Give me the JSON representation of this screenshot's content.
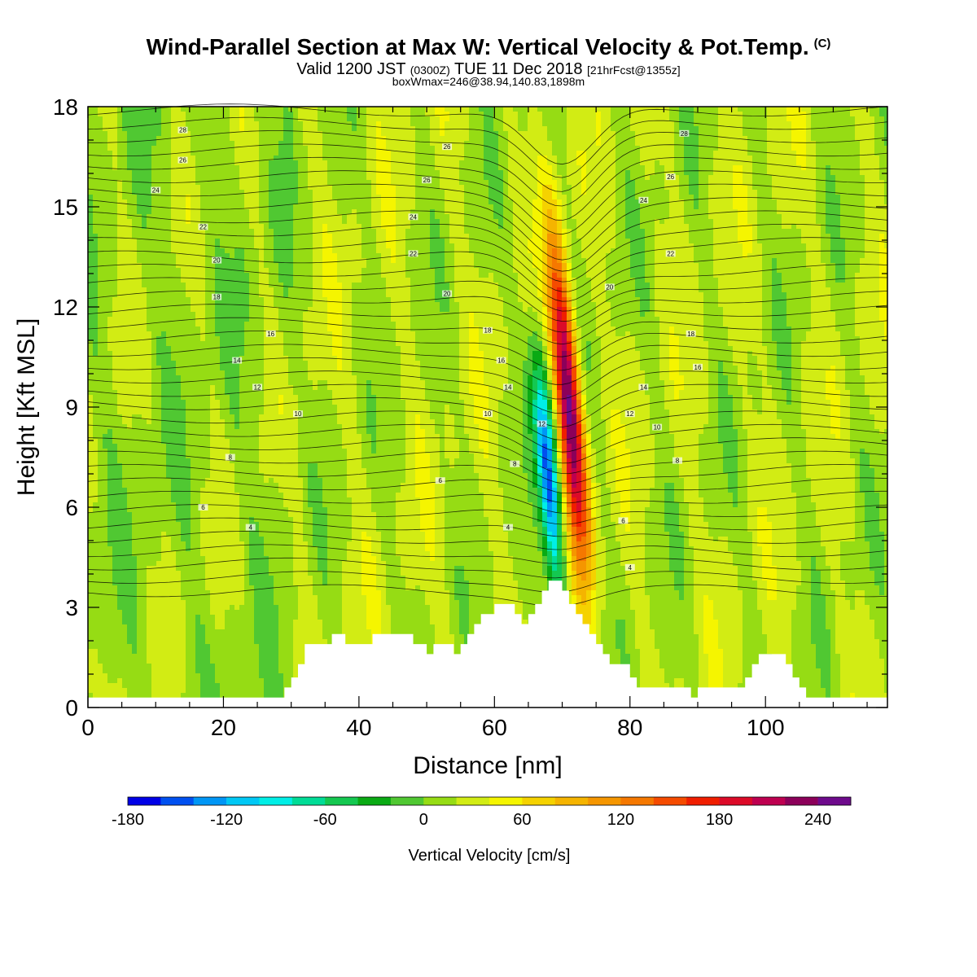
{
  "titles": {
    "main": "Wind-Parallel Section at Max W: Vertical Velocity & Pot.Temp.",
    "copyright": "(C)",
    "valid_prefix": "Valid 1200 JST",
    "valid_zulu": "(0300Z)",
    "valid_date": "TUE 11 Dec 2018",
    "forecast": "[21hrFcst@1355z]",
    "boxmax": "boxWmax=246@38.94,140.83,1898m"
  },
  "chart_data": {
    "type": "heatmap",
    "title": "Wind-Parallel Section at Max W: Vertical Velocity & Pot.Temp.",
    "xlabel": "Distance [nm]",
    "ylabel": "Height [Kft MSL]",
    "xlim": [
      0,
      118
    ],
    "ylim": [
      0,
      18
    ],
    "xticks": [
      0,
      20,
      40,
      60,
      80,
      100
    ],
    "yticks": [
      0,
      3,
      6,
      9,
      12,
      15,
      18
    ],
    "grid": false,
    "colorbar": {
      "label": "Vertical Velocity [cm/s]",
      "min": -180,
      "max": 260,
      "step": 20,
      "tick_values": [
        -180,
        -120,
        -60,
        0,
        60,
        120,
        180,
        240
      ],
      "colors": [
        "#0000e6",
        "#0050f0",
        "#0096f5",
        "#00c8f5",
        "#00eee6",
        "#00dc96",
        "#14c850",
        "#0aaa14",
        "#50c832",
        "#96dc14",
        "#d2ec14",
        "#f5f500",
        "#f5d200",
        "#f5b400",
        "#f59600",
        "#f57800",
        "#f54b00",
        "#f01e00",
        "#dc0a28",
        "#be0050",
        "#8c005a",
        "#6e0a8c"
      ]
    },
    "vertical_velocity_cm_s": {
      "background_range": [
        -20,
        20
      ],
      "updraft": {
        "peak": 246,
        "at": {
          "x": 71,
          "height_kft": 9
        },
        "units": "cm/s"
      },
      "downdraft": {
        "peak": -180,
        "at": {
          "x": 68,
          "height_kft": 7
        },
        "units": "cm/s"
      }
    },
    "theta_contour_labels": [
      {
        "x": 14,
        "y": 17.3,
        "text": "28"
      },
      {
        "x": 14,
        "y": 16.4,
        "text": "26"
      },
      {
        "x": 10,
        "y": 15.5,
        "text": "24"
      },
      {
        "x": 17,
        "y": 14.4,
        "text": "22"
      },
      {
        "x": 19,
        "y": 13.4,
        "text": "20"
      },
      {
        "x": 19,
        "y": 12.3,
        "text": "18"
      },
      {
        "x": 27,
        "y": 11.2,
        "text": "16"
      },
      {
        "x": 22,
        "y": 10.4,
        "text": "14"
      },
      {
        "x": 25,
        "y": 9.6,
        "text": "12"
      },
      {
        "x": 31,
        "y": 8.8,
        "text": "10"
      },
      {
        "x": 21,
        "y": 7.5,
        "text": "8"
      },
      {
        "x": 17,
        "y": 6.0,
        "text": "6"
      },
      {
        "x": 24,
        "y": 5.4,
        "text": "4"
      },
      {
        "x": 53,
        "y": 16.8,
        "text": "26"
      },
      {
        "x": 50,
        "y": 15.8,
        "text": "26"
      },
      {
        "x": 48,
        "y": 14.7,
        "text": "24"
      },
      {
        "x": 48,
        "y": 13.6,
        "text": "22"
      },
      {
        "x": 53,
        "y": 12.4,
        "text": "20"
      },
      {
        "x": 59,
        "y": 11.3,
        "text": "18"
      },
      {
        "x": 61,
        "y": 10.4,
        "text": "16"
      },
      {
        "x": 62,
        "y": 9.6,
        "text": "14"
      },
      {
        "x": 59,
        "y": 8.8,
        "text": "10"
      },
      {
        "x": 67,
        "y": 8.5,
        "text": "12"
      },
      {
        "x": 63,
        "y": 7.3,
        "text": "8"
      },
      {
        "x": 52,
        "y": 6.8,
        "text": "6"
      },
      {
        "x": 62,
        "y": 5.4,
        "text": "4"
      },
      {
        "x": 88,
        "y": 17.2,
        "text": "28"
      },
      {
        "x": 86,
        "y": 15.9,
        "text": "26"
      },
      {
        "x": 82,
        "y": 15.2,
        "text": "24"
      },
      {
        "x": 86,
        "y": 13.6,
        "text": "22"
      },
      {
        "x": 77,
        "y": 12.6,
        "text": "20"
      },
      {
        "x": 89,
        "y": 11.2,
        "text": "18"
      },
      {
        "x": 90,
        "y": 10.2,
        "text": "16"
      },
      {
        "x": 82,
        "y": 9.6,
        "text": "14"
      },
      {
        "x": 80,
        "y": 8.8,
        "text": "12"
      },
      {
        "x": 84,
        "y": 8.4,
        "text": "10"
      },
      {
        "x": 87,
        "y": 7.4,
        "text": "8"
      },
      {
        "x": 79,
        "y": 5.6,
        "text": "6"
      },
      {
        "x": 80,
        "y": 4.2,
        "text": "4"
      }
    ],
    "terrain_height_kft": {
      "x": [
        0,
        28,
        29,
        30,
        31,
        32,
        34,
        35,
        36,
        37,
        38,
        39,
        40,
        41,
        42,
        43,
        44,
        45,
        46,
        47,
        48,
        50,
        51,
        53,
        54,
        55,
        56,
        57,
        58,
        60,
        61,
        62,
        63,
        64,
        65,
        66,
        67,
        68,
        69,
        70,
        71,
        72,
        73,
        74,
        75,
        76,
        77,
        78,
        80,
        81,
        82,
        84,
        86,
        88,
        89,
        90,
        91,
        92,
        93,
        96,
        97,
        98,
        99,
        100,
        101,
        102,
        103,
        104,
        105,
        106,
        107,
        110,
        118
      ],
      "y": [
        0.3,
        0.3,
        0.6,
        0.9,
        1.3,
        1.9,
        1.9,
        1.9,
        2.2,
        2.2,
        1.9,
        1.9,
        1.9,
        1.9,
        2.2,
        2.2,
        2.2,
        2.2,
        2.2,
        2.2,
        1.9,
        1.6,
        1.9,
        1.9,
        1.6,
        1.9,
        2.2,
        2.5,
        2.8,
        3.1,
        3.1,
        3.1,
        2.8,
        2.5,
        2.8,
        3.1,
        3.5,
        3.8,
        3.8,
        3.5,
        3.1,
        2.8,
        2.5,
        2.2,
        1.9,
        1.6,
        1.3,
        1.3,
        0.9,
        0.6,
        0.6,
        0.6,
        0.6,
        0.6,
        0.3,
        0.6,
        0.6,
        0.6,
        0.6,
        0.6,
        0.9,
        1.3,
        1.6,
        1.6,
        1.6,
        1.6,
        1.3,
        0.9,
        0.6,
        0.3,
        0.3,
        0.3,
        0.3
      ]
    }
  }
}
